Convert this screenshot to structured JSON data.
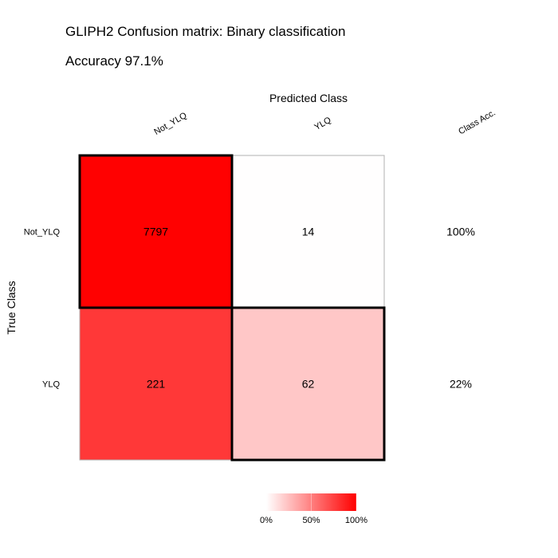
{
  "chart_data": {
    "type": "heatmap",
    "title": "GLIPH2 Confusion matrix: Binary classification",
    "subtitle": "Accuracy 97.1%",
    "xlabel": "Predicted Class",
    "ylabel": "True Class",
    "predicted_labels": [
      "Not_YLQ",
      "YLQ"
    ],
    "true_labels": [
      "Not_YLQ",
      "YLQ"
    ],
    "class_acc_header": "Class Acc.",
    "matrix": [
      [
        7797,
        14
      ],
      [
        221,
        62
      ]
    ],
    "row_fraction": [
      [
        0.998,
        0.002
      ],
      [
        0.781,
        0.219
      ]
    ],
    "class_acc": [
      "100%",
      "22%"
    ],
    "legend": {
      "ticks": [
        "0%",
        "50%",
        "100%"
      ],
      "colors": [
        "#ffffff",
        "#ff0000"
      ]
    }
  }
}
